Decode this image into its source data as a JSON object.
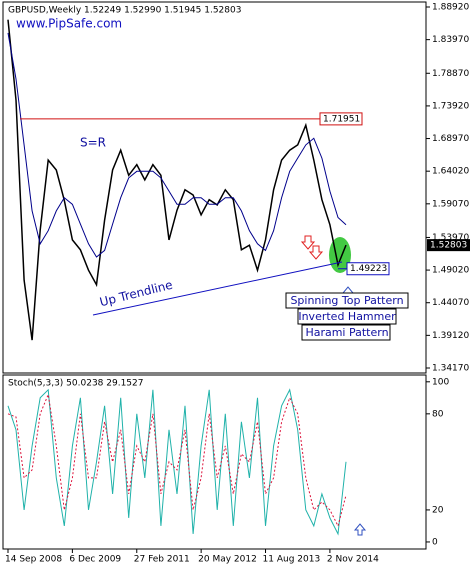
{
  "chart_data": [
    {
      "type": "line",
      "title": "GBPUSD,Weekly  1.52249 1.52990 1.51945 1.52803",
      "subtitle": "www.PipSafe.com",
      "categories": [
        "14 Sep 2008",
        null,
        null,
        null,
        null,
        null,
        null,
        null,
        "6 Dec 2009",
        null,
        null,
        null,
        null,
        null,
        null,
        null,
        "27 Feb 2011",
        null,
        null,
        null,
        null,
        null,
        null,
        null,
        "20 May 2012",
        null,
        null,
        null,
        null,
        null,
        null,
        null,
        "11 Aug 2013",
        null,
        null,
        null,
        null,
        null,
        null,
        null,
        "2 Nov 2014",
        null,
        null
      ],
      "series": [
        {
          "color": "#000000",
          "values": [
            1.87,
            1.748,
            1.475,
            1.384,
            1.551,
            1.657,
            1.642,
            1.596,
            1.536,
            1.521,
            1.49,
            1.468,
            1.566,
            1.642,
            1.672,
            1.634,
            1.65,
            1.627,
            1.65,
            1.634,
            1.536,
            1.581,
            1.612,
            1.604,
            1.574,
            1.597,
            1.589,
            1.612,
            1.597,
            1.521,
            1.528,
            1.49,
            1.536,
            1.612,
            1.657,
            1.672,
            1.68,
            1.71,
            1.657,
            1.597,
            1.559,
            1.498,
            1.52803
          ]
        },
        {
          "color": "#00008b",
          "values": [
            1.85,
            1.78,
            1.68,
            1.58,
            1.53,
            1.55,
            1.58,
            1.6,
            1.59,
            1.56,
            1.53,
            1.51,
            1.52,
            1.56,
            1.6,
            1.63,
            1.64,
            1.64,
            1.64,
            1.63,
            1.61,
            1.59,
            1.59,
            1.6,
            1.6,
            1.59,
            1.59,
            1.6,
            1.6,
            1.58,
            1.55,
            1.53,
            1.52,
            1.55,
            1.6,
            1.64,
            1.66,
            1.68,
            1.69,
            1.66,
            1.61,
            1.57,
            1.559
          ]
        }
      ],
      "ylim": [
        1.3341,
        1.8968
      ],
      "yticks": [
        {
          "value": 1.8892,
          "label": "1.88920"
        },
        {
          "value": 1.8397,
          "label": "1.83970"
        },
        {
          "value": 1.7887,
          "label": "1.78870"
        },
        {
          "value": 1.7392,
          "label": "1.73920"
        },
        {
          "value": 1.6897,
          "label": "1.68970"
        },
        {
          "value": 1.6402,
          "label": "1.64020"
        },
        {
          "value": 1.5907,
          "label": "1.59070"
        },
        {
          "value": 1.5397,
          "label": "1.53970"
        },
        {
          "value": 1.4902,
          "label": "1.49020"
        },
        {
          "value": 1.4407,
          "label": "1.44070"
        },
        {
          "value": 1.3912,
          "label": "1.39120"
        },
        {
          "value": 1.3417,
          "label": "1.34170"
        }
      ],
      "annotations": {
        "sr": "S=R",
        "trendline": "Up Trendline",
        "resistance": 1.71951,
        "support": 1.49223,
        "last_price": 1.52803,
        "patterns": [
          "Spinning Top Pattern",
          "Inverted Hammer",
          "Harami Pattern"
        ]
      }
    },
    {
      "type": "line",
      "title": "Stoch(5,3,3) 50.0238 29.1527",
      "series": [
        {
          "color": "#20b2aa",
          "values": [
            85,
            70,
            20,
            60,
            90,
            95,
            40,
            10,
            60,
            90,
            20,
            50,
            85,
            30,
            90,
            15,
            80,
            40,
            95,
            10,
            70,
            30,
            85,
            5,
            60,
            95,
            20,
            80,
            10,
            75,
            40,
            90,
            10,
            60,
            85,
            95,
            70,
            20,
            10,
            30,
            15,
            5,
            50.0238
          ]
        },
        {
          "color": "#dc143c",
          "values": [
            80,
            78,
            40,
            45,
            80,
            92,
            60,
            20,
            40,
            80,
            40,
            40,
            75,
            50,
            70,
            30,
            60,
            50,
            80,
            30,
            50,
            45,
            70,
            20,
            40,
            80,
            40,
            60,
            30,
            55,
            50,
            75,
            30,
            40,
            75,
            90,
            80,
            40,
            20,
            25,
            20,
            10,
            29.1527
          ]
        }
      ],
      "ylim": [
        -4.4,
        103
      ],
      "yticks": [
        0,
        20,
        80,
        100
      ]
    }
  ]
}
